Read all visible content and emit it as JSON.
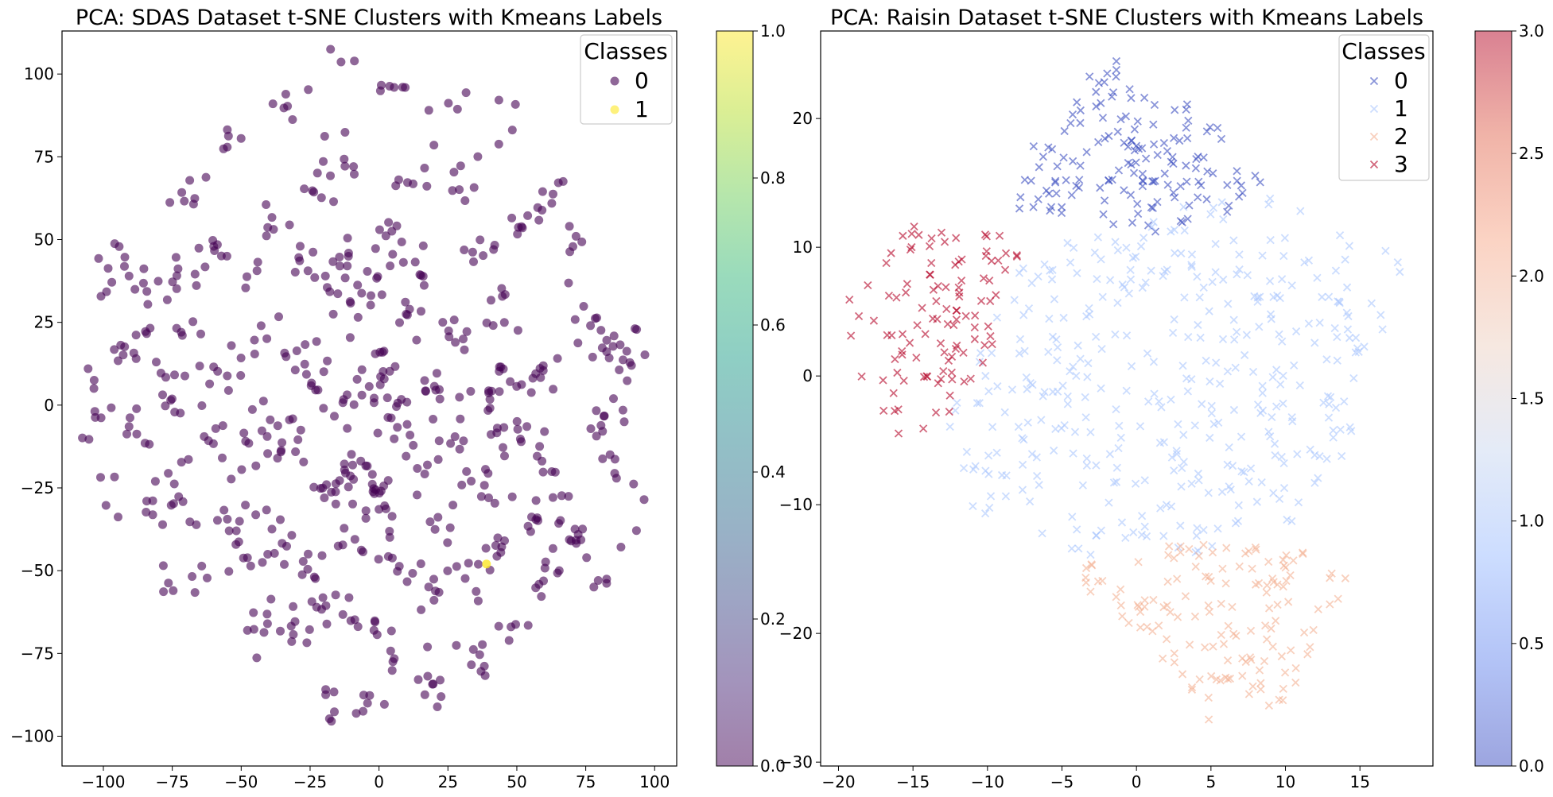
{
  "chart_data": [
    {
      "type": "scatter",
      "title": "PCA: SDAS Dataset t-SNE Clusters with Kmeans Labels",
      "xlabel": "",
      "ylabel": "",
      "xlim": [
        -115,
        108
      ],
      "ylim": [
        -109,
        113
      ],
      "xticks": [
        -100,
        -75,
        -50,
        -25,
        0,
        25,
        50,
        75,
        100
      ],
      "yticks": [
        -100,
        -75,
        -50,
        -25,
        0,
        25,
        50,
        75,
        100
      ],
      "xtick_labels": [
        "−100",
        "−75",
        "−50",
        "−25",
        "0",
        "25",
        "50",
        "75",
        "100"
      ],
      "ytick_labels": [
        "−100",
        "−75",
        "−50",
        "−25",
        "0",
        "25",
        "50",
        "75",
        "100"
      ],
      "marker": "circle",
      "colormap": "viridis",
      "legend": {
        "title": "Classes",
        "position": "top-right",
        "entries": [
          "0",
          "1"
        ]
      },
      "colorbar": {
        "range": [
          0,
          1
        ],
        "ticks": [
          "0.0",
          "0.2",
          "0.4",
          "0.6",
          "0.8",
          "1.0"
        ]
      },
      "class_colors": [
        "#440154",
        "#fde725"
      ],
      "grid": false,
      "series": [
        {
          "class": 0,
          "clusters": [
            [
              -104,
              7,
              3
            ],
            [
              -104,
              -10,
              2
            ],
            [
              -100,
              35,
              3
            ],
            [
              -100,
              -1,
              4
            ],
            [
              -99,
              -27,
              4
            ],
            [
              -95,
              50,
              3
            ],
            [
              -95,
              45,
              3
            ],
            [
              -93,
              18,
              7
            ],
            [
              -88,
              38,
              6
            ],
            [
              -85,
              -12,
              7
            ],
            [
              -84,
              22,
              5
            ],
            [
              -80,
              -28,
              5
            ],
            [
              -78,
              0,
              5
            ],
            [
              -77,
              40,
              6
            ],
            [
              -76,
              -52,
              2
            ],
            [
              -74,
              -37,
              5
            ],
            [
              -72,
              5,
              6
            ],
            [
              -71,
              -25,
              5
            ],
            [
              -69,
              63,
              7
            ],
            [
              -67,
              23,
              6
            ],
            [
              -65,
              -56,
              6
            ],
            [
              -65,
              40,
              4
            ],
            [
              -63,
              -10,
              7
            ],
            [
              -60,
              -38,
              3
            ],
            [
              -58,
              48,
              6
            ],
            [
              -56,
              9,
              6
            ],
            [
              -53,
              77,
              5
            ],
            [
              -52,
              -43,
              7
            ],
            [
              -50,
              -12,
              7
            ],
            [
              -47,
              17,
              5
            ],
            [
              -45,
              37,
              5
            ],
            [
              -45,
              -30,
              6
            ],
            [
              -42,
              -67,
              10
            ],
            [
              -41,
              -3,
              8
            ],
            [
              -39,
              54,
              6
            ],
            [
              -36,
              -43,
              8
            ],
            [
              -33,
              88,
              6
            ],
            [
              -32,
              20,
              7
            ],
            [
              -31,
              -13,
              8
            ],
            [
              -28,
              -67,
              8
            ],
            [
              -27,
              42,
              7
            ],
            [
              -24,
              -50,
              8
            ],
            [
              -21,
              8,
              8
            ],
            [
              -21,
              63,
              6
            ],
            [
              -19,
              -25,
              8
            ],
            [
              -18,
              -88,
              6
            ],
            [
              -16,
              33,
              6
            ],
            [
              -15,
              -60,
              7
            ],
            [
              -13,
              45,
              7
            ],
            [
              -12,
              75,
              8
            ],
            [
              -12,
              102,
              3
            ],
            [
              -11,
              0,
              7
            ],
            [
              -9,
              -40,
              8
            ],
            [
              -7,
              -22,
              20
            ],
            [
              -6,
              -90,
              6
            ],
            [
              -4,
              32,
              12
            ],
            [
              -3,
              -67,
              7
            ],
            [
              -2,
              15,
              7
            ],
            [
              1,
              5,
              12
            ],
            [
              2,
              -30,
              8
            ],
            [
              3,
              -45,
              7
            ],
            [
              5,
              50,
              10
            ],
            [
              7,
              96,
              6
            ],
            [
              8,
              -5,
              8
            ],
            [
              8,
              -75,
              7
            ],
            [
              10,
              25,
              7
            ],
            [
              12,
              -20,
              8
            ],
            [
              13,
              67,
              6
            ],
            [
              15,
              -55,
              8
            ],
            [
              18,
              40,
              6
            ],
            [
              20,
              5,
              8
            ],
            [
              22,
              -38,
              8
            ],
            [
              23,
              -82,
              7
            ],
            [
              24,
              90,
              4
            ],
            [
              25,
              -10,
              9
            ],
            [
              27,
              70,
              8
            ],
            [
              30,
              20,
              8
            ],
            [
              32,
              -52,
              6
            ],
            [
              35,
              -25,
              8
            ],
            [
              36,
              45,
              7
            ],
            [
              37,
              -75,
              8
            ],
            [
              40,
              0,
              8
            ],
            [
              42,
              30,
              8
            ],
            [
              44,
              -42,
              8
            ],
            [
              45,
              85,
              4
            ],
            [
              47,
              -65,
              6
            ],
            [
              48,
              -12,
              9
            ],
            [
              49,
              8,
              9
            ],
            [
              52,
              55,
              7
            ],
            [
              55,
              -35,
              8
            ],
            [
              57,
              -15,
              6
            ],
            [
              60,
              60,
              7
            ],
            [
              60,
              -50,
              8
            ],
            [
              62,
              10,
              8
            ],
            [
              65,
              -30,
              6
            ],
            [
              70,
              47,
              6
            ],
            [
              72,
              -40,
              10
            ],
            [
              75,
              25,
              6
            ],
            [
              76,
              -5,
              5
            ],
            [
              78,
              15,
              8
            ],
            [
              80,
              -55,
              4
            ],
            [
              83,
              -20,
              5
            ],
            [
              85,
              0,
              6
            ],
            [
              90,
              20,
              5
            ],
            [
              92,
              12,
              4
            ],
            [
              88,
              -39,
              2
            ],
            [
              96,
              -24,
              2
            ]
          ],
          "values": "scattered circles distributed over x from -105 to 97 and y from -98 to 102"
        },
        {
          "class": 1,
          "points": [
            [
              39,
              -48
            ]
          ]
        }
      ]
    },
    {
      "type": "scatter",
      "title": "PCA: Raisin Dataset t-SNE Clusters with Kmeans Labels",
      "xlabel": "",
      "ylabel": "",
      "xlim": [
        -21.2,
        19.9
      ],
      "ylim": [
        -30.3,
        26.8
      ],
      "xticks": [
        -20,
        -15,
        -10,
        -5,
        0,
        5,
        10,
        15
      ],
      "yticks": [
        -30,
        -20,
        -10,
        0,
        10,
        20
      ],
      "xtick_labels": [
        "−20",
        "−15",
        "−10",
        "−5",
        "0",
        "5",
        "10",
        "15"
      ],
      "ytick_labels": [
        "−30",
        "−20",
        "−10",
        "0",
        "10",
        "20"
      ],
      "marker": "x",
      "colormap": "coolwarm",
      "legend": {
        "title": "Classes",
        "position": "top-right",
        "entries": [
          "0",
          "1",
          "2",
          "3"
        ]
      },
      "colorbar": {
        "range": [
          0,
          3
        ],
        "ticks": [
          "0.0",
          "0.5",
          "1.0",
          "1.5",
          "2.0",
          "2.5",
          "3.0"
        ]
      },
      "class_colors": [
        "#3b4cc0",
        "#aac7fd",
        "#f3b093",
        "#b40426"
      ],
      "grid": false,
      "series": [
        {
          "class": 0,
          "regions": [
            [
              [
                -7,
                18
              ],
              [
                -2,
                25
              ],
              [
                4,
                21
              ],
              [
                9,
                16
              ],
              [
                7,
                13
              ],
              [
                1,
                11
              ],
              [
                -3,
                12
              ],
              [
                -8,
                13
              ]
            ]
          ],
          "values": "upper-centre band, x approx -8 to 9, y approx 11 to 25"
        },
        {
          "class": 1,
          "regions": [
            [
              [
                -9,
                8
              ],
              [
                0,
                13
              ],
              [
                10,
                14
              ],
              [
                18,
                9
              ],
              [
                14,
                -6
              ],
              [
                10,
                -12
              ],
              [
                4,
                -14
              ],
              [
                -4,
                -14
              ],
              [
                -11,
                -11
              ],
              [
                -13,
                -4
              ],
              [
                -10,
                3
              ]
            ]
          ],
          "values": "large central region, x approx -13 to 18, y approx -14 to 14"
        },
        {
          "class": 2,
          "regions": [
            [
              [
                -5,
                -15
              ],
              [
                3,
                -13
              ],
              [
                10,
                -13
              ],
              [
                15,
                -16
              ],
              [
                12,
                -21
              ],
              [
                9,
                -28
              ],
              [
                4,
                -27
              ],
              [
                1,
                -21
              ],
              [
                -2,
                -18
              ]
            ]
          ],
          "values": "lower region, x approx -5 to 15, y approx -28 to -13"
        },
        {
          "class": 3,
          "regions": [
            [
              [
                -20,
                3
              ],
              [
                -19,
                8
              ],
              [
                -15,
                12
              ],
              [
                -11,
                12
              ],
              [
                -7,
                10
              ],
              [
                -9,
                3
              ],
              [
                -11,
                -1
              ],
              [
                -14,
                -6
              ],
              [
                -16,
                -5
              ],
              [
                -19,
                1
              ]
            ]
          ],
          "values": "left region, x approx -20 to -6, y approx -7 to 13"
        }
      ]
    }
  ]
}
